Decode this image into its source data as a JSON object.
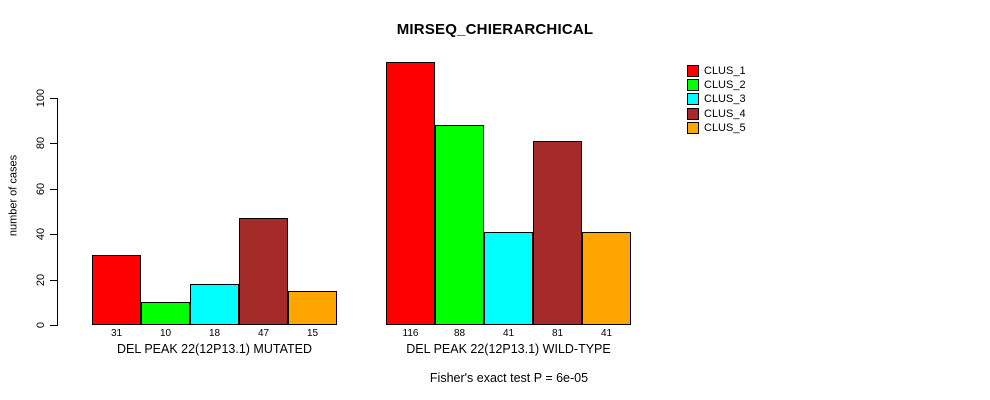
{
  "chart_data": {
    "type": "bar",
    "title": "MIRSEQ_CHIERARCHICAL",
    "ylabel": "number of cases",
    "xlabel": "",
    "ylim": [
      0,
      116
    ],
    "yticks": [
      0,
      20,
      40,
      60,
      80,
      100
    ],
    "grid": false,
    "legend_position": "right",
    "categories": [
      "DEL PEAK 22(12P13.1) MUTATED",
      "DEL PEAK 22(12P13.1) WILD-TYPE"
    ],
    "series": [
      {
        "name": "CLUS_1",
        "color": "#FF0000",
        "values": [
          31,
          116
        ]
      },
      {
        "name": "CLUS_2",
        "color": "#00FF00",
        "values": [
          10,
          88
        ]
      },
      {
        "name": "CLUS_3",
        "color": "#00FFFF",
        "values": [
          18,
          41
        ]
      },
      {
        "name": "CLUS_4",
        "color": "#A52A2A",
        "values": [
          47,
          81
        ]
      },
      {
        "name": "CLUS_5",
        "color": "#FFA500",
        "values": [
          15,
          41
        ]
      }
    ],
    "bar_value_labels": [
      [
        "31",
        "10",
        "18",
        "47",
        "15"
      ],
      [
        "116",
        "88",
        "41",
        "81",
        "41"
      ]
    ],
    "annotation": "Fisher's exact test P = 6e-05"
  },
  "colors": {
    "foreground": "#000000",
    "background": "#FFFFFF"
  }
}
